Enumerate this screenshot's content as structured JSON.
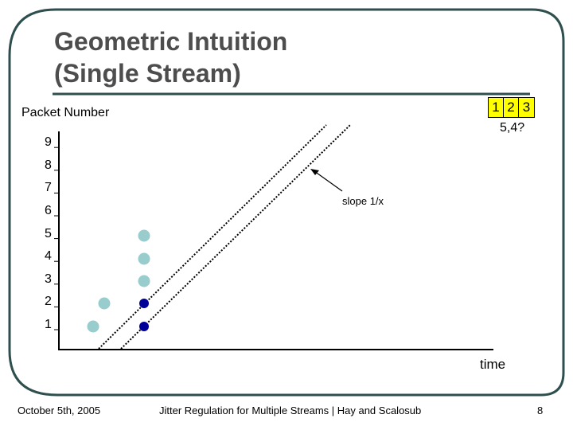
{
  "slide": {
    "title_line1": "Geometric Intuition",
    "title_line2": "(Single Stream)",
    "accent_line_color": "#2f4f4f"
  },
  "diagram": {
    "y_axis_label": "Packet Number",
    "x_axis_label": "time",
    "y_ticks": [
      "1",
      "2",
      "3",
      "4",
      "5",
      "6",
      "7",
      "8",
      "9"
    ],
    "slope_label": "slope 1/x",
    "packet_box": [
      "1",
      "2",
      "3"
    ],
    "packet_note": "5,4?",
    "colors": {
      "light_point": "#99cccc",
      "dark_point": "#000099",
      "packet_box_fill": "#ffff00"
    }
  },
  "footer": {
    "date": "October 5th, 2005",
    "center": "Jitter Regulation for Multiple Streams | Hay and Scalosub",
    "page_number": "8"
  }
}
